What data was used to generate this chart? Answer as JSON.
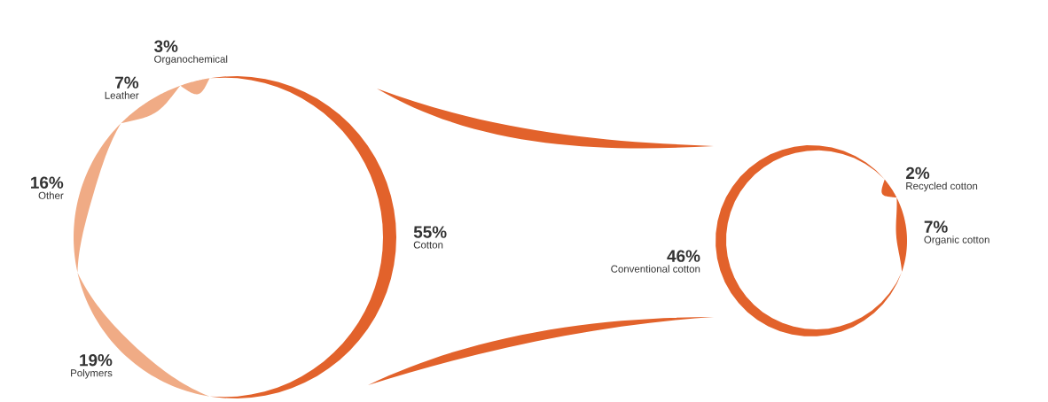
{
  "chart_data": [
    {
      "type": "donut",
      "categories": [
        "Organochemical",
        "Leather",
        "Other",
        "Polymers",
        "Cotton"
      ],
      "values": [
        3,
        7,
        16,
        19,
        55
      ],
      "value_labels": [
        "3%",
        "7%",
        "16%",
        "19%",
        "55%"
      ],
      "colors": [
        "#f0ab85",
        "#f0ab85",
        "#f0ab85",
        "#f0ab85",
        "#e2622b"
      ]
    },
    {
      "type": "donut",
      "categories": [
        "Conventional cotton",
        "Organic cotton",
        "Recycled cotton"
      ],
      "values": [
        46,
        7,
        2
      ],
      "value_labels": [
        "46%",
        "7%",
        "2%"
      ],
      "colors": [
        "#e2622b",
        "#e2622b",
        "#e2622b"
      ]
    }
  ]
}
